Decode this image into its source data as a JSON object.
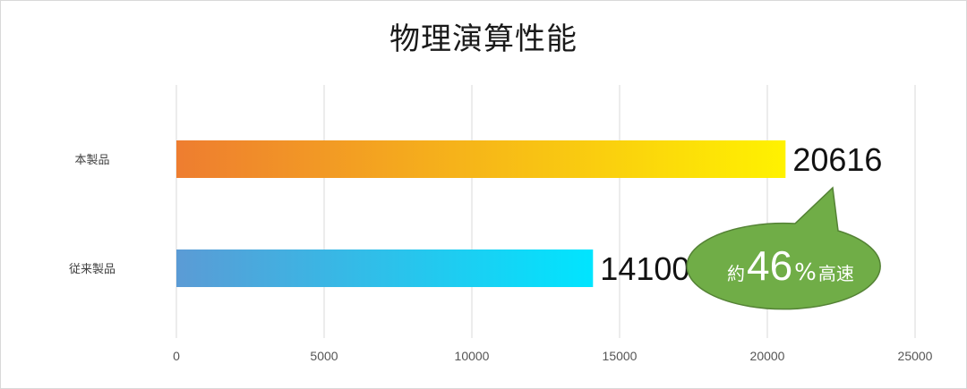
{
  "chart_data": {
    "type": "bar",
    "orientation": "horizontal",
    "title": "物理演算性能",
    "categories": [
      "本製品",
      "従来製品"
    ],
    "values": [
      20616,
      14100
    ],
    "value_labels": [
      "20616",
      "14100"
    ],
    "xlim": [
      0,
      25000
    ],
    "x_ticks": [
      0,
      5000,
      10000,
      15000,
      20000,
      25000
    ],
    "x_tick_labels": [
      "0",
      "5000",
      "10000",
      "15000",
      "20000",
      "25000"
    ],
    "grid": true,
    "bar_gradients": [
      {
        "from": "#ee7d30",
        "to": "#fff200"
      },
      {
        "from": "#5b9bd5",
        "to": "#00e5ff"
      }
    ],
    "callout": {
      "prefix": "約",
      "number": "46",
      "suffix": "%",
      "trailing": "高速",
      "fill": "#70ad47",
      "stroke": "#548235"
    }
  }
}
